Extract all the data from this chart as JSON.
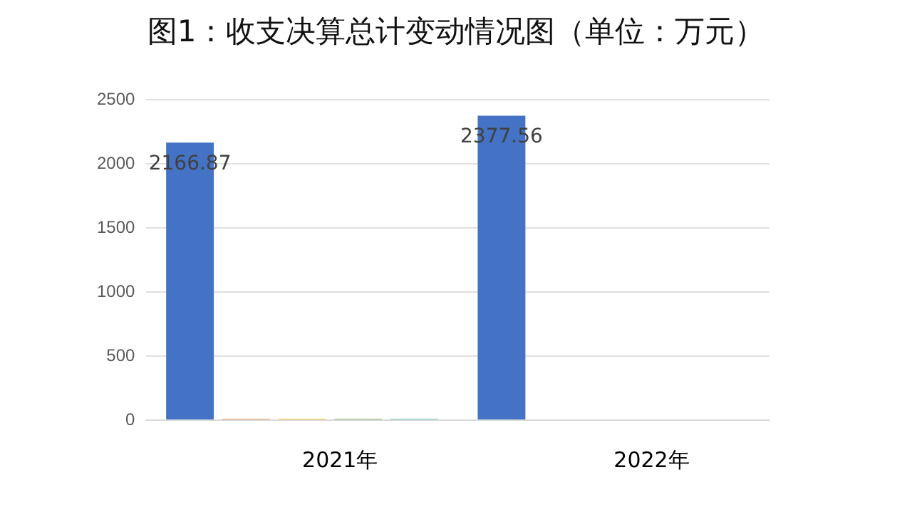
{
  "chart_data": {
    "type": "bar",
    "title": "图1：收支决算总计变动情况图（单位：万元）",
    "categories": [
      "2021年",
      "2022年"
    ],
    "series": [
      {
        "color": "#4472c4",
        "values": [
          2166.87,
          2377.56
        ],
        "value_labels": [
          "2166.87",
          "2377.56"
        ]
      },
      {
        "color": "#ed7d31",
        "values": [
          10,
          null
        ]
      },
      {
        "color": "#ffc000",
        "values": [
          10,
          null
        ]
      },
      {
        "color": "#70ad47",
        "values": [
          10,
          null
        ]
      },
      {
        "color": "#4bc0b0",
        "values": [
          10,
          null
        ]
      }
    ],
    "ylim": [
      0,
      2500
    ],
    "yticks": [
      0,
      500,
      1000,
      1500,
      2000,
      2500
    ],
    "grid": "y"
  }
}
